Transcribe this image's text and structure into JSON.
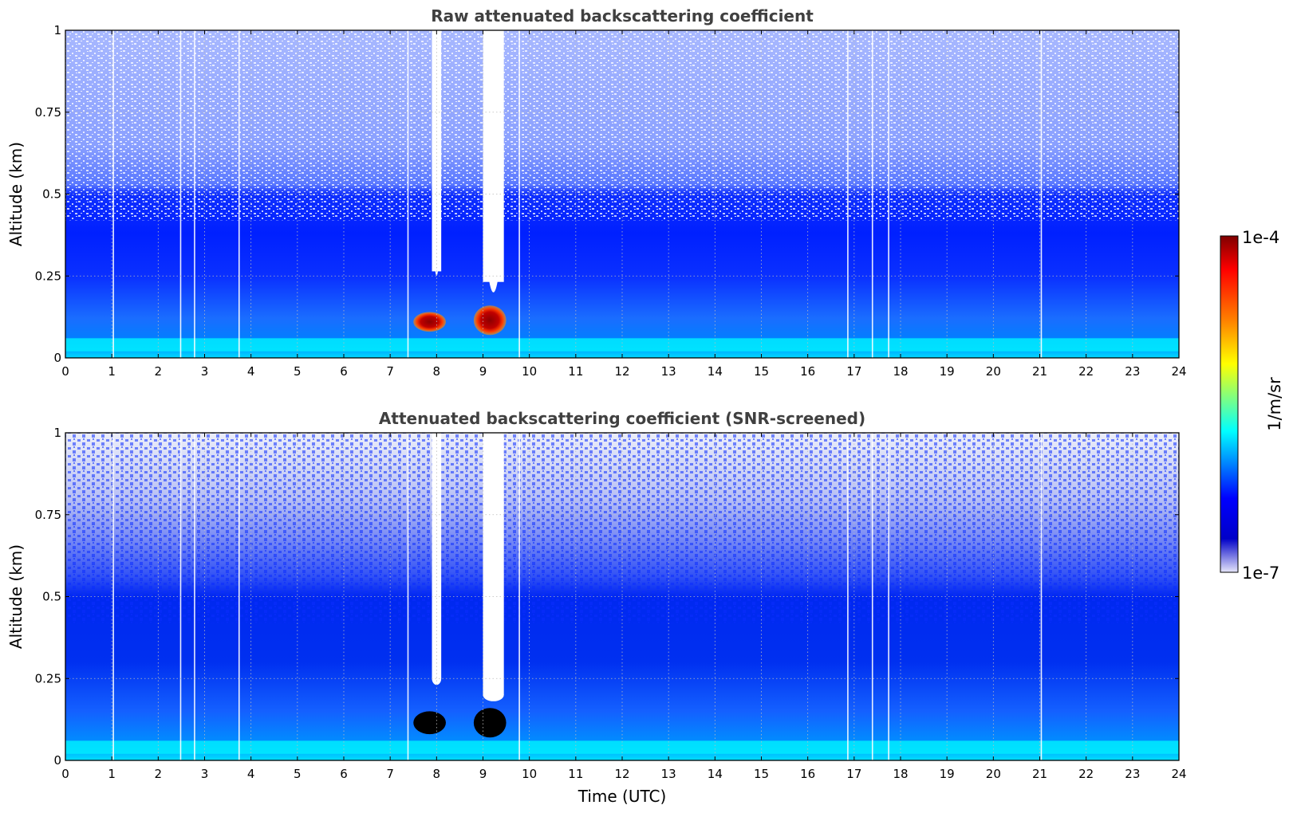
{
  "chart_data": [
    {
      "type": "heatmap",
      "title": "Raw attenuated backscattering coefficient",
      "xlabel": "",
      "ylabel": "Altitude (km)",
      "xlim": [
        0,
        24
      ],
      "ylim": [
        0,
        1
      ],
      "xticks": [
        "0",
        "1",
        "2",
        "3",
        "4",
        "5",
        "6",
        "7",
        "8",
        "9",
        "10",
        "11",
        "12",
        "13",
        "14",
        "15",
        "16",
        "17",
        "18",
        "19",
        "20",
        "21",
        "22",
        "23",
        "24"
      ],
      "yticks": [
        "0",
        "0.25",
        "0.5",
        "0.75",
        "1"
      ],
      "grid": true,
      "colorscale": "jet",
      "features": [
        {
          "label": "strong backscatter layer",
          "time_range": [
            7.5,
            8.2
          ],
          "altitude_range": [
            0.08,
            0.14
          ],
          "level": "1e-4"
        },
        {
          "label": "strong backscatter layer",
          "time_range": [
            8.8,
            9.5
          ],
          "altitude_range": [
            0.07,
            0.16
          ],
          "level": "1e-4"
        },
        {
          "label": "signal gap",
          "time_range": [
            7.9,
            8.1
          ],
          "altitude_range": [
            0.25,
            1.0
          ]
        },
        {
          "label": "signal gap",
          "time_range": [
            9.0,
            9.45
          ],
          "altitude_range": [
            0.2,
            1.0
          ]
        }
      ]
    },
    {
      "type": "heatmap",
      "title": "Attenuated backscattering coefficient (SNR-screened)",
      "xlabel": "Time (UTC)",
      "ylabel": "Altitude (km)",
      "xlim": [
        0,
        24
      ],
      "ylim": [
        0,
        1
      ],
      "xticks": [
        "0",
        "1",
        "2",
        "3",
        "4",
        "5",
        "6",
        "7",
        "8",
        "9",
        "10",
        "11",
        "12",
        "13",
        "14",
        "15",
        "16",
        "17",
        "18",
        "19",
        "20",
        "21",
        "22",
        "23",
        "24"
      ],
      "yticks": [
        "0",
        "0.25",
        "0.5",
        "0.75",
        "1"
      ],
      "grid": true,
      "colorscale": "jet",
      "features": [
        {
          "label": "saturated cloud",
          "time_range": [
            7.5,
            8.2
          ],
          "altitude_range": [
            0.08,
            0.15
          ]
        },
        {
          "label": "saturated cloud",
          "time_range": [
            8.8,
            9.5
          ],
          "altitude_range": [
            0.07,
            0.16
          ]
        }
      ]
    }
  ],
  "colorbar": {
    "label": "1/m/sr",
    "max_label": "1e-4",
    "min_label": "1e-7",
    "scale": "log",
    "colors": [
      "#7f0000",
      "#ff0000",
      "#ff8000",
      "#ffff00",
      "#80ff80",
      "#00ffff",
      "#0080ff",
      "#0000ff",
      "#0000c8",
      "#d6d6f5"
    ]
  }
}
